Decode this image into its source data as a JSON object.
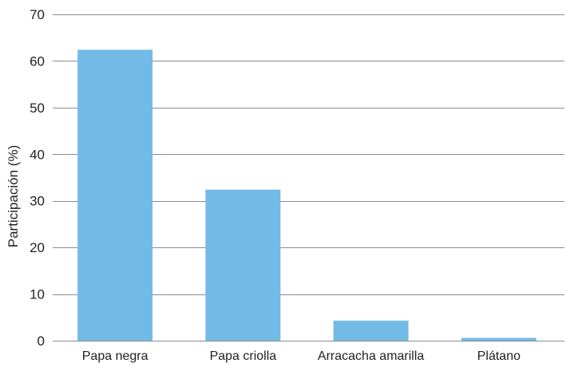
{
  "chart_data": {
    "type": "bar",
    "categories": [
      "Papa negra",
      "Papa criolla",
      "Arracacha amarilla",
      "Plátano"
    ],
    "values": [
      62.4,
      32.4,
      4.3,
      0.6
    ],
    "title": "",
    "xlabel": "",
    "ylabel": "Participación (%)",
    "ylim": [
      0,
      70
    ],
    "yticks": [
      0,
      10,
      20,
      30,
      40,
      50,
      60,
      70
    ],
    "grid": true,
    "bar_color": "#72bbe7",
    "grid_color": "#8c8c8c"
  }
}
